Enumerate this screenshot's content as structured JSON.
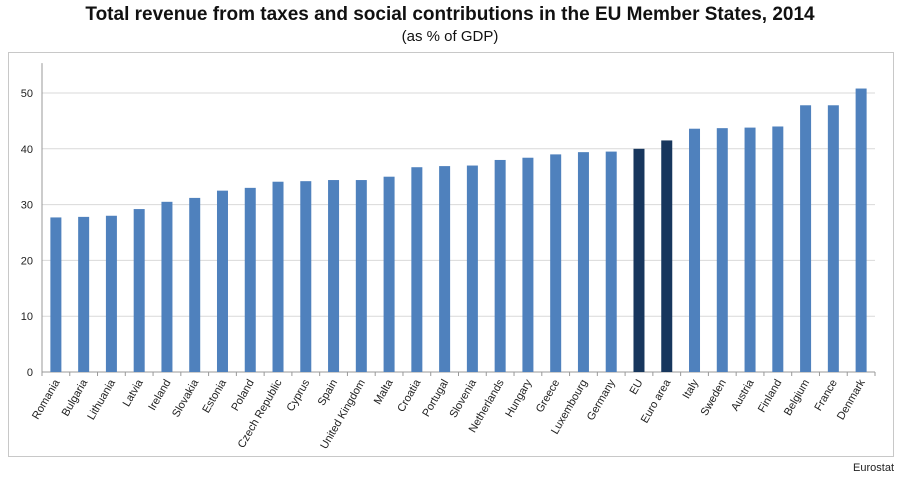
{
  "chart_data": {
    "type": "bar",
    "title": "Total revenue from taxes and social contributions in the EU Member States, 2014",
    "subtitle": "(as % of GDP)",
    "xlabel": "",
    "ylabel": "",
    "ylim": [
      0,
      55
    ],
    "yticks": [
      0,
      10,
      20,
      30,
      40,
      50
    ],
    "grid": true,
    "categories": [
      "Romania",
      "Bulgaria",
      "Lithuania",
      "Latvia",
      "Ireland",
      "Slovakia",
      "Estonia",
      "Poland",
      "Czech Republic",
      "Cyprus",
      "Spain",
      "United Kingdom",
      "Malta",
      "Croatia",
      "Portugal",
      "Slovenia",
      "Netherlands",
      "Hungary",
      "Greece",
      "Luxembourg",
      "Germany",
      "EU",
      "Euro area",
      "Italy",
      "Sweden",
      "Austria",
      "Finland",
      "Belgium",
      "France",
      "Denmark"
    ],
    "values": [
      27.7,
      27.8,
      28.0,
      29.2,
      30.5,
      31.2,
      32.5,
      33.0,
      34.1,
      34.2,
      34.4,
      34.4,
      35.0,
      36.7,
      36.9,
      37.0,
      38.0,
      38.4,
      39.0,
      39.4,
      39.5,
      40.0,
      41.5,
      43.6,
      43.7,
      43.8,
      44.0,
      47.8,
      47.8,
      50.8
    ],
    "highlight": [
      "EU",
      "Euro area"
    ],
    "colors": {
      "bar": "#4f81bd",
      "highlight": "#17365d",
      "grid": "#d9d9d9",
      "axis": "#999999",
      "text": "#222222"
    }
  },
  "source": "Eurostat"
}
